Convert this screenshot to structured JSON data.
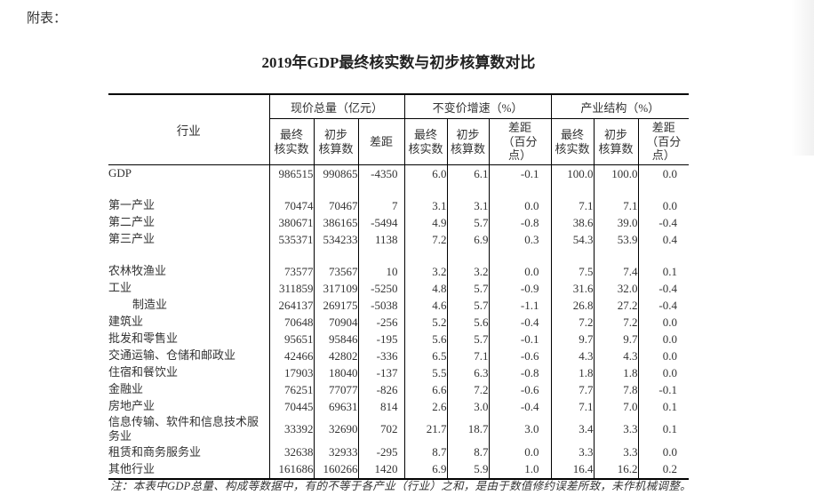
{
  "page": {
    "prefix_label": "附表：",
    "title": "2019年GDP最终核实数与初步核算数对比",
    "note": "注：本表中GDP总量、构成等数据中，有的不等于各产业（行业）之和，是由于数值修约误差所致，未作机械调整。"
  },
  "table": {
    "industry_header": "行业",
    "groups": [
      {
        "label": "现价总量（亿元）",
        "columns": [
          "最终\n核实数",
          "初步\n核算数",
          "差距"
        ]
      },
      {
        "label": "不变价增速（%）",
        "columns": [
          "最终\n核实数",
          "初步\n核算数",
          "差距\n（百分\n点）"
        ]
      },
      {
        "label": "产业结构（%）",
        "columns": [
          "最终\n核实数",
          "初步\n核算数",
          "差距\n（百分\n点）"
        ]
      }
    ],
    "rows": [
      {
        "name": "GDP",
        "values": [
          "986515",
          "990865",
          "-4350",
          "6.0",
          "6.1",
          "-0.1",
          "100.0",
          "100.0",
          "0.0"
        ]
      },
      {
        "blank": true
      },
      {
        "name": "第一产业",
        "values": [
          "70474",
          "70467",
          "7",
          "3.1",
          "3.1",
          "0.0",
          "7.1",
          "7.1",
          "0.0"
        ]
      },
      {
        "name": "第二产业",
        "values": [
          "380671",
          "386165",
          "-5494",
          "4.9",
          "5.7",
          "-0.8",
          "38.6",
          "39.0",
          "-0.4"
        ]
      },
      {
        "name": "第三产业",
        "values": [
          "535371",
          "534233",
          "1138",
          "7.2",
          "6.9",
          "0.3",
          "54.3",
          "53.9",
          "0.4"
        ]
      },
      {
        "blank": true
      },
      {
        "name": "农林牧渔业",
        "values": [
          "73577",
          "73567",
          "10",
          "3.2",
          "3.2",
          "0.0",
          "7.5",
          "7.4",
          "0.1"
        ]
      },
      {
        "name": "工业",
        "values": [
          "311859",
          "317109",
          "-5250",
          "4.8",
          "5.7",
          "-0.9",
          "31.6",
          "32.0",
          "-0.4"
        ]
      },
      {
        "name": "制造业",
        "indent": true,
        "values": [
          "264137",
          "269175",
          "-5038",
          "4.6",
          "5.7",
          "-1.1",
          "26.8",
          "27.2",
          "-0.4"
        ]
      },
      {
        "name": "建筑业",
        "values": [
          "70648",
          "70904",
          "-256",
          "5.2",
          "5.6",
          "-0.4",
          "7.2",
          "7.2",
          "0.0"
        ]
      },
      {
        "name": "批发和零售业",
        "values": [
          "95651",
          "95846",
          "-195",
          "5.6",
          "5.7",
          "-0.1",
          "9.7",
          "9.7",
          "0.0"
        ]
      },
      {
        "name": "交通运输、仓储和邮政业",
        "values": [
          "42466",
          "42802",
          "-336",
          "6.5",
          "7.1",
          "-0.6",
          "4.3",
          "4.3",
          "0.0"
        ]
      },
      {
        "name": "住宿和餐饮业",
        "values": [
          "17903",
          "18040",
          "-137",
          "5.5",
          "6.3",
          "-0.8",
          "1.8",
          "1.8",
          "0.0"
        ]
      },
      {
        "name": "金融业",
        "values": [
          "76251",
          "77077",
          "-826",
          "6.6",
          "7.2",
          "-0.6",
          "7.7",
          "7.8",
          "-0.1"
        ]
      },
      {
        "name": "房地产业",
        "values": [
          "70445",
          "69631",
          "814",
          "2.6",
          "3.0",
          "-0.4",
          "7.1",
          "7.0",
          "0.1"
        ]
      },
      {
        "name": "信息传输、软件和信息技术服务业",
        "values": [
          "33392",
          "32690",
          "702",
          "21.7",
          "18.7",
          "3.0",
          "3.4",
          "3.3",
          "0.1"
        ]
      },
      {
        "name": "租赁和商务服务业",
        "values": [
          "32638",
          "32933",
          "-295",
          "8.7",
          "8.7",
          "0.0",
          "3.3",
          "3.3",
          "0.0"
        ]
      },
      {
        "name": "其他行业",
        "values": [
          "161686",
          "160266",
          "1420",
          "6.9",
          "5.9",
          "1.0",
          "16.4",
          "16.2",
          "0.2"
        ]
      }
    ]
  }
}
